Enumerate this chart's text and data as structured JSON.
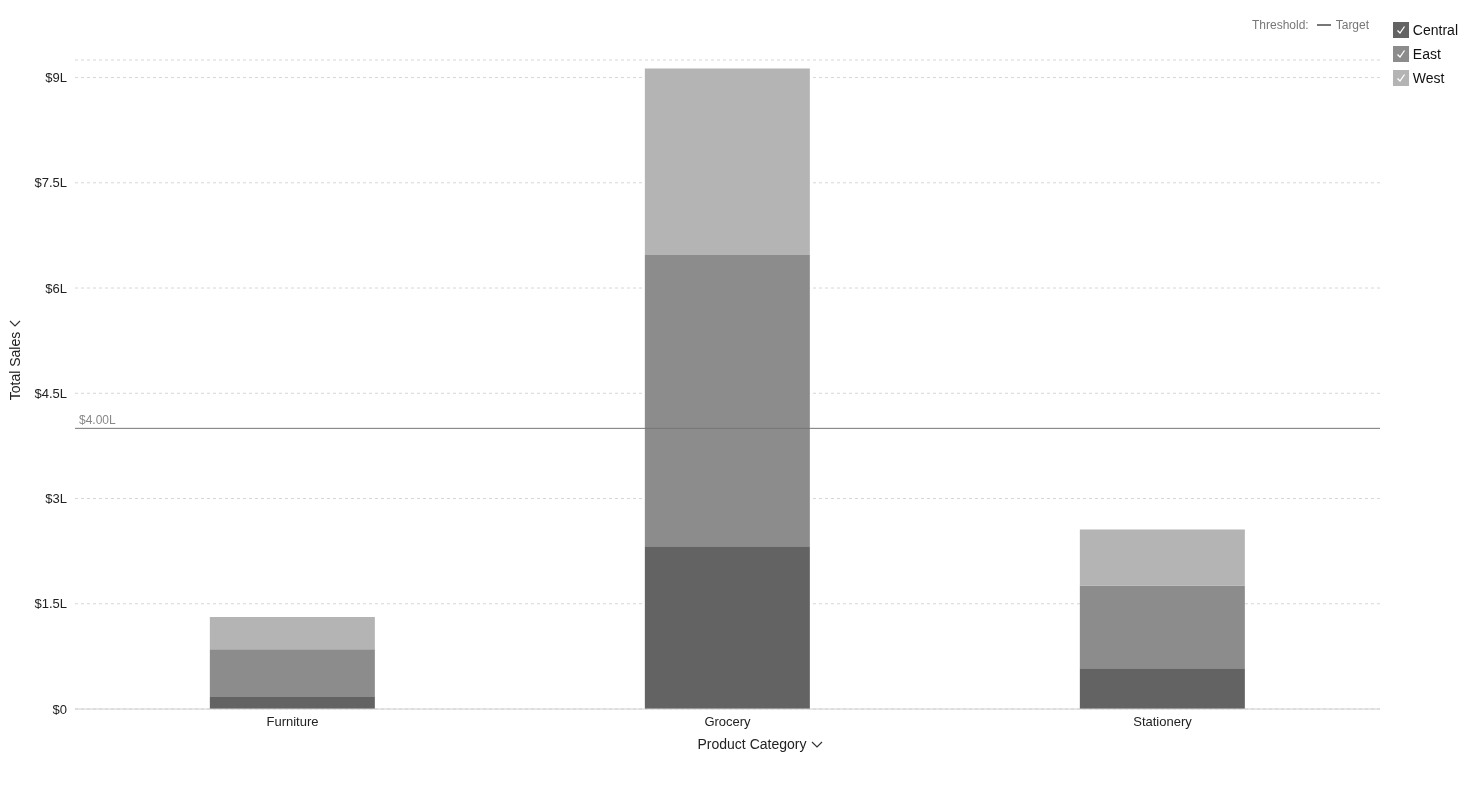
{
  "chart_data": {
    "type": "bar",
    "stacked": true,
    "xlabel": "Product Category",
    "ylabel": "Total Sales",
    "categories": [
      "Furniture",
      "Grocery",
      "Stationery"
    ],
    "series": [
      {
        "name": "Central",
        "color": "#636363",
        "values": [
          0.17,
          2.32,
          0.58
        ]
      },
      {
        "name": "East",
        "color": "#8c8c8c",
        "values": [
          0.68,
          4.15,
          1.18
        ]
      },
      {
        "name": "West",
        "color": "#b4b4b4",
        "values": [
          0.46,
          2.66,
          0.8
        ]
      }
    ],
    "ylim": [
      0,
      9.25
    ],
    "yticks": [
      {
        "value": 0,
        "label": "$0"
      },
      {
        "value": 1.5,
        "label": "$1.5L"
      },
      {
        "value": 3,
        "label": "$3L"
      },
      {
        "value": 4.5,
        "label": "$4.5L"
      },
      {
        "value": 6,
        "label": "$6L"
      },
      {
        "value": 7.5,
        "label": "$7.5L"
      },
      {
        "value": 9,
        "label": "$9L"
      }
    ],
    "grid": "y",
    "legend": "top right",
    "ref_lines": [
      {
        "axis": "y",
        "value": 4,
        "label": "Target",
        "color": "#777777"
      }
    ],
    "annotations": [
      "Threshold:",
      {
        "text": "$4.00L",
        "y": 4
      }
    ]
  }
}
